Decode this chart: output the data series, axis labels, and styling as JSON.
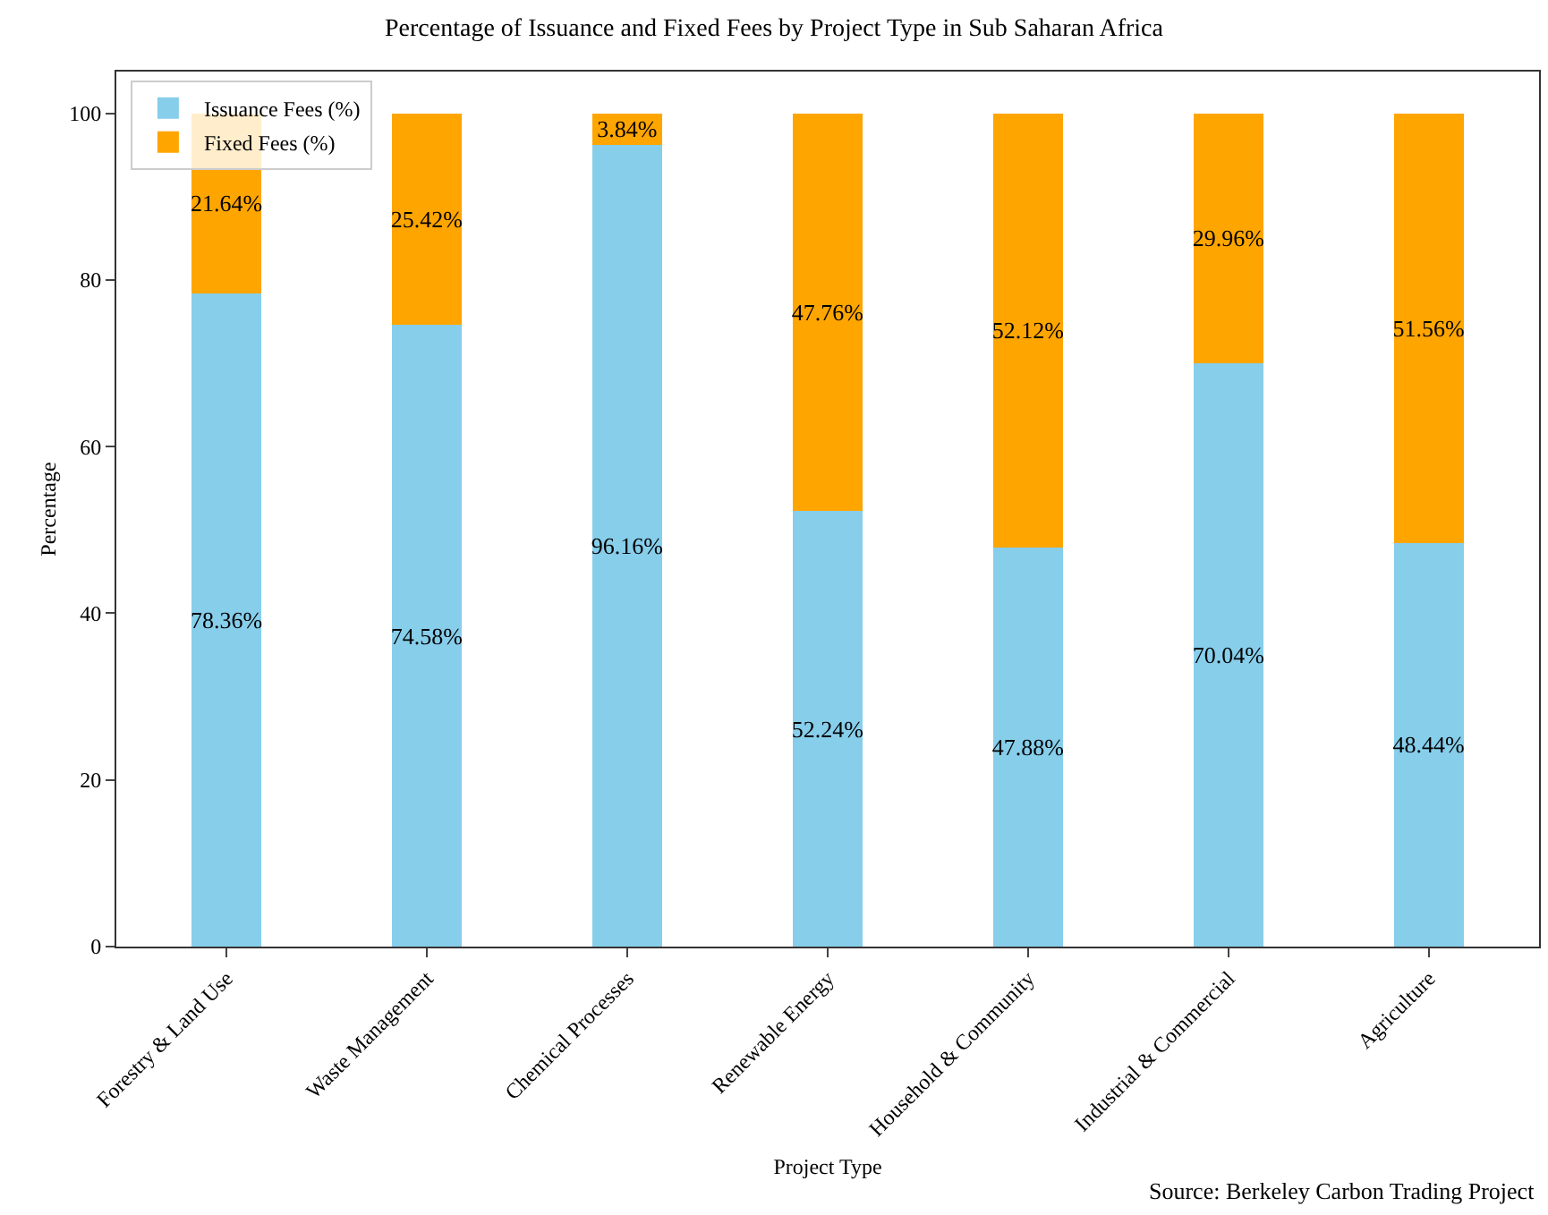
{
  "chart_data": {
    "type": "bar",
    "stacked": true,
    "title": "Percentage of Issuance and Fixed Fees by Project Type in Sub Saharan Africa",
    "xlabel": "Project Type",
    "ylabel": "Percentage",
    "categories": [
      "Forestry & Land Use",
      "Waste Management",
      "Chemical Processes",
      "Renewable Energy",
      "Household & Community",
      "Industrial & Commercial",
      "Agriculture"
    ],
    "series": [
      {
        "name": "Issuance Fees (%)",
        "color": "#87ceeb",
        "values": [
          78.36,
          74.58,
          96.16,
          52.24,
          47.88,
          70.04,
          48.44
        ],
        "value_labels": [
          "78.36%",
          "74.58%",
          "96.16%",
          "52.24%",
          "47.88%",
          "70.04%",
          "48.44%"
        ]
      },
      {
        "name": "Fixed Fees (%)",
        "color": "#ffa500",
        "values": [
          21.64,
          25.42,
          3.84,
          47.76,
          52.12,
          29.96,
          51.56
        ],
        "value_labels": [
          "21.64%",
          "25.42%",
          "3.84%",
          "47.76%",
          "52.12%",
          "29.96%",
          "51.56%"
        ]
      }
    ],
    "ylim": [
      0,
      105
    ],
    "yticks": [
      0,
      20,
      40,
      60,
      80,
      100
    ],
    "grid": false,
    "legend": "top left",
    "annotations": [
      "Source: Berkeley Carbon Trading Project"
    ]
  }
}
